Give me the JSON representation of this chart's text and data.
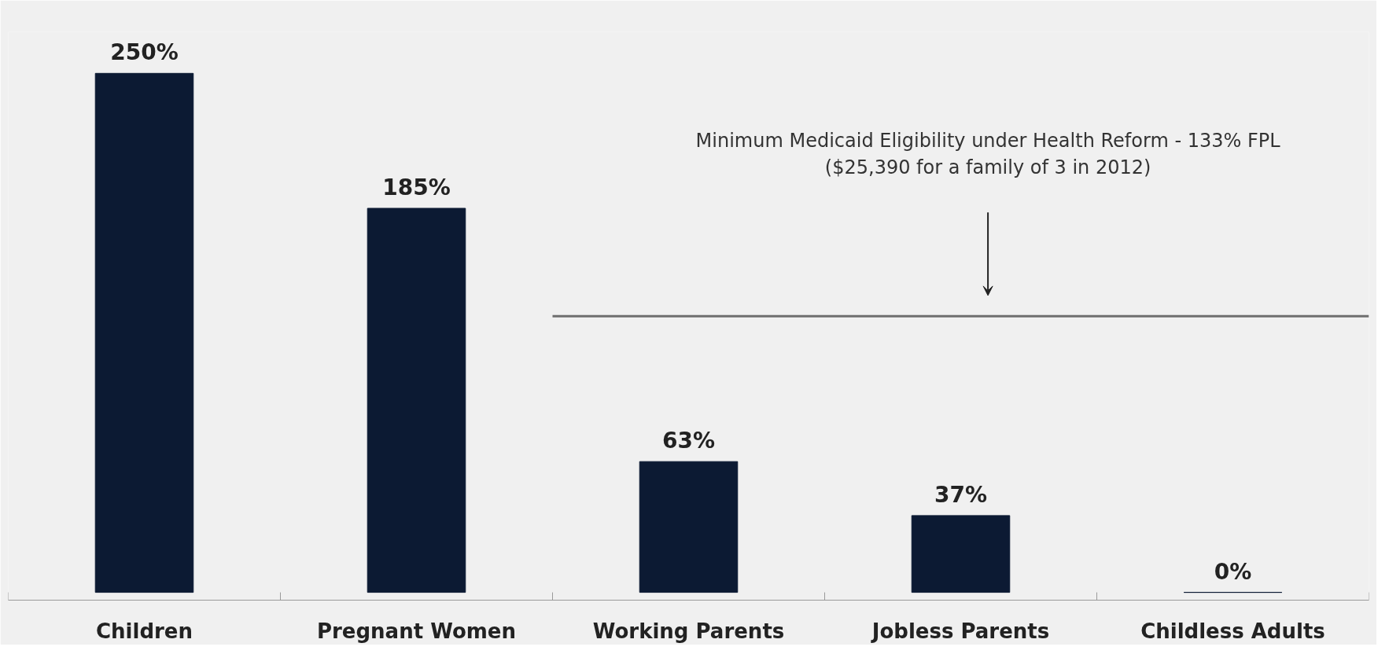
{
  "chart_data": {
    "type": "bar",
    "categories": [
      "Children",
      "Pregnant Women",
      "Working Parents",
      "Jobless Parents",
      "Childless Adults"
    ],
    "values": [
      250,
      185,
      63,
      37,
      0
    ],
    "color": "#0c1a33",
    "value_labels": [
      "250%",
      "185%",
      "63%",
      "37%",
      "0%"
    ],
    "ref_lines": [
      {
        "axis": "y",
        "value": 133,
        "color": "#6e6e6e"
      }
    ],
    "annotations": [
      "Minimum Medicaid Eligibility under Health Reform - 133% FPL",
      "($25,390 for a family of 3 in 2012)"
    ],
    "grid": false
  }
}
